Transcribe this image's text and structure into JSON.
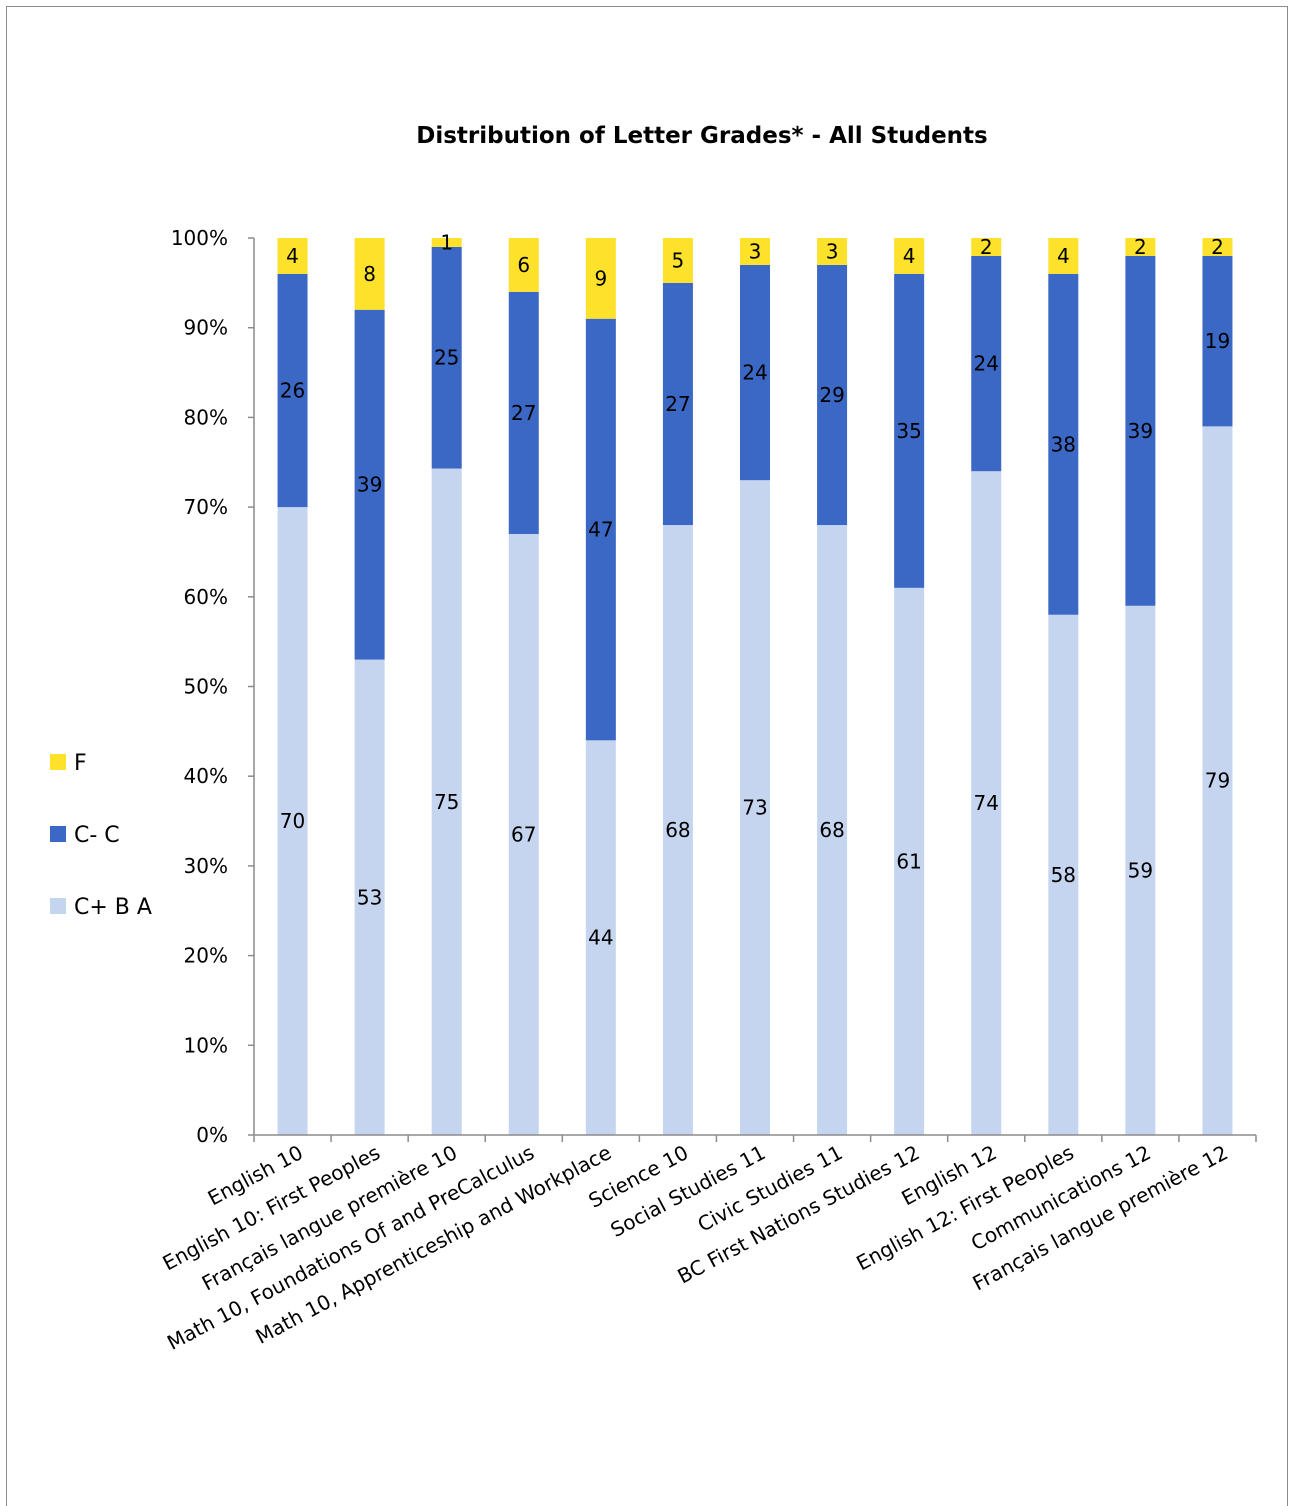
{
  "chart_data": {
    "type": "bar",
    "stacked": true,
    "title": "Distribution of Letter Grades* - All Students",
    "categories": [
      "English 10",
      "English 10: First Peoples",
      "Français langue première 10",
      "Math 10, Foundations Of and PreCalculus",
      "Math 10, Apprenticeship and Workplace",
      "Science 10",
      "Social Studies 11",
      "Civic Studies 11",
      "BC First Nations Studies 12",
      "English 12",
      "English 12: First Peoples",
      "Communications 12",
      "Français langue première 12"
    ],
    "series": [
      {
        "name": "C+ B A",
        "color": "#c6d5ef",
        "values": [
          70,
          53,
          75,
          67,
          44,
          68,
          73,
          68,
          61,
          74,
          58,
          59,
          79
        ],
        "segment_percent": [
          70,
          53,
          74.3,
          67,
          44,
          68,
          73,
          68,
          61,
          74,
          58,
          59,
          79
        ]
      },
      {
        "name": "C- C",
        "color": "#3a68c4",
        "values": [
          26,
          39,
          25,
          27,
          47,
          27,
          24,
          29,
          35,
          24,
          38,
          39,
          19
        ],
        "segment_percent": [
          26,
          39,
          24.7,
          27,
          47,
          27,
          24,
          29,
          35,
          24,
          38,
          39,
          19
        ]
      },
      {
        "name": "F",
        "color": "#fee12b",
        "values": [
          4,
          8,
          1,
          6,
          9,
          5,
          3,
          3,
          4,
          2,
          4,
          2,
          2
        ],
        "segment_percent": [
          4,
          8,
          1,
          6,
          9,
          5,
          3,
          3,
          4,
          2,
          4,
          2,
          2
        ]
      }
    ],
    "yaxis": {
      "min": 0,
      "max": 100,
      "step": 10,
      "tick_labels": [
        "0%",
        "10%",
        "20%",
        "30%",
        "40%",
        "50%",
        "60%",
        "70%",
        "80%",
        "90%",
        "100%"
      ]
    },
    "legend": {
      "placement": "left",
      "order": [
        "F",
        "C- C",
        "C+ B A"
      ]
    },
    "grid": false,
    "xlabel": "",
    "ylabel": ""
  }
}
